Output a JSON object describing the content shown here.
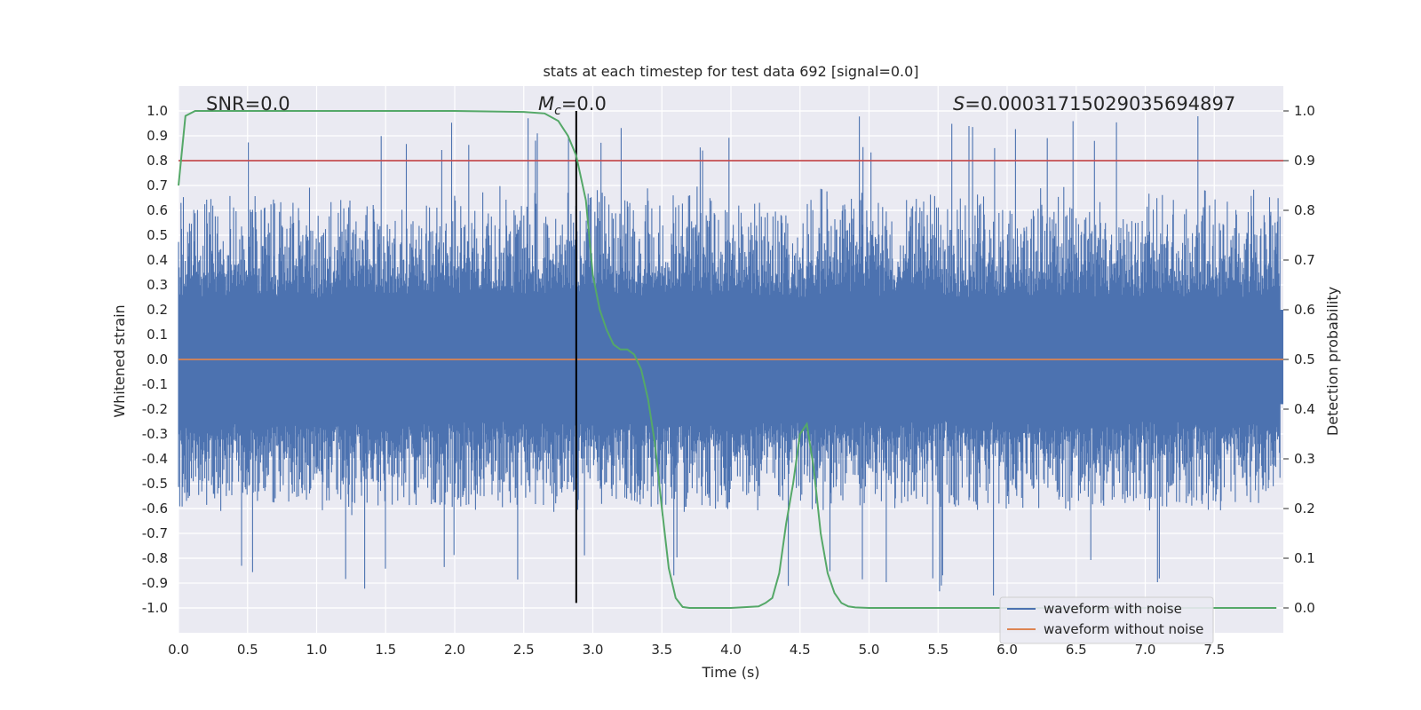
{
  "chart_data": {
    "type": "line",
    "title": "stats at each timestep for test data 692 [signal=0.0]",
    "xlabel": "Time (s)",
    "ylabel": "Whitened strain",
    "ylabel_right": "Detection probability",
    "xlim": [
      0.0,
      8.0
    ],
    "ylim": [
      -1.1,
      1.1
    ],
    "ylim_right": [
      -0.05,
      1.05
    ],
    "x_ticks": [
      "0.0",
      "0.5",
      "1.0",
      "1.5",
      "2.0",
      "2.5",
      "3.0",
      "3.5",
      "4.0",
      "4.5",
      "5.0",
      "5.5",
      "6.0",
      "6.5",
      "7.0",
      "7.5"
    ],
    "x_tick_values": [
      0.0,
      0.5,
      1.0,
      1.5,
      2.0,
      2.5,
      3.0,
      3.5,
      4.0,
      4.5,
      5.0,
      5.5,
      6.0,
      6.5,
      7.0,
      7.5
    ],
    "y_ticks": [
      "1.0",
      "0.9",
      "0.8",
      "0.7",
      "0.6",
      "0.5",
      "0.4",
      "0.3",
      "0.2",
      "0.1",
      "0.0",
      "-0.1",
      "-0.2",
      "-0.3",
      "-0.4",
      "-0.5",
      "-0.6",
      "-0.7",
      "-0.8",
      "-0.9",
      "-1.0"
    ],
    "y_tick_values": [
      1.0,
      0.9,
      0.8,
      0.7,
      0.6,
      0.5,
      0.4,
      0.3,
      0.2,
      0.1,
      0.0,
      -0.1,
      -0.2,
      -0.3,
      -0.4,
      -0.5,
      -0.6,
      -0.7,
      -0.8,
      -0.9,
      -1.0
    ],
    "y_right_ticks": [
      "1.0",
      "0.9",
      "0.8",
      "0.7",
      "0.6",
      "0.5",
      "0.4",
      "0.3",
      "0.2",
      "0.1",
      "0.0"
    ],
    "y_right_tick_values": [
      1.0,
      0.9,
      0.8,
      0.7,
      0.6,
      0.5,
      0.4,
      0.3,
      0.2,
      0.1,
      0.0
    ],
    "grid": true,
    "legend_position": "bottom-right",
    "annotations": {
      "snr": "SNR=0.0",
      "mc_symbol": "M",
      "mc_sub": "c",
      "mc_value": "=0.0",
      "s_symbol": "S",
      "s_value": "=0.00031715029035694897"
    },
    "threshold_line": {
      "axis": "right",
      "value": 0.9,
      "color": "#c44e52"
    },
    "marker_line": {
      "x": 2.88,
      "y_range": [
        -0.98,
        1.0
      ],
      "color": "#000000"
    },
    "series": [
      {
        "name": "waveform with noise",
        "color": "#4c72b0",
        "axis": "left",
        "description_values": "dense noise, typical |strain| 0.4-0.6, peaks up to ~0.97",
        "noise_envelope": {
          "typical_positive": 0.55,
          "typical_negative": -0.45,
          "max": 0.98,
          "min": -0.97
        }
      },
      {
        "name": "waveform without noise",
        "color": "#dd8452",
        "axis": "left",
        "x": [
          0.0,
          8.0
        ],
        "y": [
          0.0,
          0.0
        ]
      },
      {
        "color": "#55a868",
        "axis": "right",
        "x": [
          0.0,
          0.05,
          0.12,
          0.3,
          1.0,
          2.0,
          2.5,
          2.65,
          2.75,
          2.82,
          2.88,
          2.95,
          3.0,
          3.05,
          3.1,
          3.15,
          3.2,
          3.25,
          3.3,
          3.35,
          3.4,
          3.45,
          3.5,
          3.55,
          3.6,
          3.65,
          3.7,
          4.0,
          4.2,
          4.25,
          4.3,
          4.35,
          4.4,
          4.45,
          4.5,
          4.55,
          4.6,
          4.65,
          4.7,
          4.75,
          4.8,
          4.85,
          4.9,
          5.0,
          6.0,
          7.0,
          7.95
        ],
        "y": [
          0.85,
          0.99,
          1.0,
          1.0,
          1.0,
          1.0,
          0.998,
          0.995,
          0.98,
          0.95,
          0.91,
          0.82,
          0.67,
          0.6,
          0.56,
          0.53,
          0.52,
          0.52,
          0.51,
          0.48,
          0.42,
          0.33,
          0.2,
          0.08,
          0.02,
          0.002,
          0.0,
          0.0,
          0.003,
          0.01,
          0.02,
          0.07,
          0.17,
          0.25,
          0.35,
          0.37,
          0.28,
          0.15,
          0.07,
          0.03,
          0.01,
          0.003,
          0.001,
          0.0,
          0.0,
          0.0,
          0.0
        ]
      }
    ]
  }
}
